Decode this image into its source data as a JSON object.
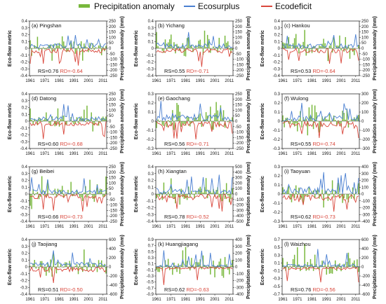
{
  "legend": {
    "precip_label": "Precipitation anomaly",
    "surplus_label": "Ecosurplus",
    "deficit_label": "Ecodeficit",
    "colors": {
      "precip": "#78b83c",
      "surplus": "#4a7fd1",
      "deficit": "#d9473c"
    }
  },
  "axis_labels": {
    "left": "Eco-flow metric",
    "right": "Precipitation anomaly (mm)"
  },
  "chart_data": [
    {
      "type": "bar",
      "title": "(a) Pingshan",
      "rs_text": "RS=0.76",
      "rd_text": "RD=-0.64",
      "ylim": [
        -0.4,
        0.4
      ],
      "yticks": [
        "0.4",
        "0.3",
        "0.2",
        "0.1",
        "0",
        "-0.1",
        "-0.2",
        "-0.3",
        "-0.4"
      ],
      "y2lim": [
        -250,
        250
      ],
      "y2ticks": [
        "250",
        "200",
        "150",
        "100",
        "50",
        "0",
        "-50",
        "-100",
        "-150",
        "-200",
        "-250"
      ],
      "xticks": [
        "1961",
        "1971",
        "1981",
        "1991",
        "2001",
        "2011"
      ],
      "seed": 11
    },
    {
      "type": "bar",
      "title": "(b) Yichang",
      "rs_text": "RS=0.55",
      "rd_text": "RD=-0.71",
      "ylim": [
        -0.4,
        0.4
      ],
      "yticks": [
        "0.4",
        "0.3",
        "0.2",
        "0.1",
        "0",
        "-0.1",
        "-0.2",
        "-0.3",
        "-0.4"
      ],
      "y2lim": [
        -250,
        250
      ],
      "y2ticks": [
        "250",
        "200",
        "150",
        "100",
        "50",
        "0",
        "-50",
        "-100",
        "-150",
        "-200",
        "-250"
      ],
      "xticks": [
        "1961",
        "1971",
        "1981",
        "1991",
        "2001",
        "2011"
      ],
      "seed": 23
    },
    {
      "type": "bar",
      "title": "(c) Hankou",
      "rs_text": "RS=0.53",
      "rd_text": "RD=-0.64",
      "ylim": [
        -0.4,
        0.4
      ],
      "yticks": [
        "0.4",
        "0.3",
        "0.2",
        "0.1",
        "0",
        "-0.1",
        "-0.2",
        "-0.3",
        "-0.4"
      ],
      "y2lim": [
        -250,
        250
      ],
      "y2ticks": [
        "250",
        "200",
        "150",
        "100",
        "50",
        "0",
        "-50",
        "-100",
        "-150",
        "-200",
        "-250"
      ],
      "xticks": [
        "1961",
        "1971",
        "1981",
        "1991",
        "2001",
        "2011"
      ],
      "seed": 37
    },
    {
      "type": "bar",
      "title": "(d) Datong",
      "rs_text": "RS=0.60",
      "rd_text": "RD=-0.68",
      "ylim": [
        -0.4,
        0.4
      ],
      "yticks": [
        "0.4",
        "0.3",
        "0.2",
        "0.1",
        "0",
        "-0.1",
        "-0.2",
        "-0.3",
        "-0.4"
      ],
      "y2lim": [
        -250,
        250
      ],
      "y2ticks": [
        "250",
        "200",
        "150",
        "100",
        "50",
        "0",
        "-50",
        "-100",
        "-150",
        "-200",
        "-250"
      ],
      "xticks": [
        "1961",
        "1971",
        "1981",
        "1991",
        "2001",
        "2011"
      ],
      "seed": 41
    },
    {
      "type": "bar",
      "title": "(e) Gaochang",
      "rs_text": "RS=0.56",
      "rd_text": "RD=-0.71",
      "ylim": [
        -0.3,
        0.3
      ],
      "yticks": [
        "0.3",
        "0.2",
        "0.1",
        "0",
        "-0.1",
        "-0.2",
        "-0.3"
      ],
      "y2lim": [
        -250,
        250
      ],
      "y2ticks": [
        "250",
        "200",
        "150",
        "100",
        "50",
        "0",
        "-50",
        "-100",
        "-150",
        "-200",
        "-250"
      ],
      "xticks": [
        "1961",
        "1971",
        "1981",
        "1991",
        "2001",
        "2011"
      ],
      "seed": 53
    },
    {
      "type": "bar",
      "title": "(f) Wulong",
      "rs_text": "RS=0.55",
      "rd_text": "RD=-0.74",
      "ylim": [
        -0.3,
        0.3
      ],
      "yticks": [
        "0.3",
        "0.2",
        "0.1",
        "0",
        "-0.1",
        "-0.2",
        "-0.3"
      ],
      "y2lim": [
        -300,
        300
      ],
      "y2ticks": [
        "300",
        "200",
        "100",
        "0",
        "-100",
        "-200",
        "-300"
      ],
      "xticks": [
        "1961",
        "1971",
        "1981",
        "1991",
        "2001",
        "2011"
      ],
      "seed": 67
    },
    {
      "type": "bar",
      "title": "(g) Beibei",
      "rs_text": "RS=0.66",
      "rd_text": "RD=-0.73",
      "ylim": [
        -0.4,
        0.4
      ],
      "yticks": [
        "0.4",
        "0.3",
        "0.2",
        "0.1",
        "0",
        "-0.1",
        "-0.2",
        "-0.3",
        "-0.4"
      ],
      "y2lim": [
        -250,
        250
      ],
      "y2ticks": [
        "250",
        "200",
        "150",
        "100",
        "50",
        "0",
        "-50",
        "-100",
        "-150",
        "-200",
        "-250"
      ],
      "xticks": [
        "1961",
        "1971",
        "1981",
        "1991",
        "2001",
        "2011"
      ],
      "seed": 71
    },
    {
      "type": "bar",
      "title": "(h) Xiangtan",
      "rs_text": "RS=0.78",
      "rd_text": "RD=-0.52",
      "ylim": [
        -0.4,
        0.4
      ],
      "yticks": [
        "0.4",
        "0.3",
        "0.2",
        "0.1",
        "0",
        "-0.1",
        "-0.2",
        "-0.3",
        "-0.4"
      ],
      "y2lim": [
        -500,
        500
      ],
      "y2ticks": [
        "500",
        "400",
        "300",
        "200",
        "100",
        "0",
        "-100",
        "-200",
        "-300",
        "-400",
        "-500"
      ],
      "xticks": [
        "1961",
        "1971",
        "1981",
        "1991",
        "2001",
        "2011"
      ],
      "seed": 83
    },
    {
      "type": "bar",
      "title": "(i) Taoyuan",
      "rs_text": "RS=0.62",
      "rd_text": "RD=-0.73",
      "ylim": [
        -0.3,
        0.3
      ],
      "yticks": [
        "0.3",
        "0.2",
        "0.1",
        "0",
        "-0.1",
        "-0.2",
        "-0.3"
      ],
      "y2lim": [
        -400,
        400
      ],
      "y2ticks": [
        "400",
        "300",
        "200",
        "100",
        "0",
        "-100",
        "-200",
        "-300",
        "-400"
      ],
      "xticks": [
        "1961",
        "1971",
        "1981",
        "1991",
        "2001",
        "2011"
      ],
      "seed": 97
    },
    {
      "type": "bar",
      "title": "(j) Taojiang",
      "rs_text": "RS=0.51",
      "rd_text": "RD=-0.50",
      "ylim": [
        -0.4,
        0.4
      ],
      "yticks": [
        "0.4",
        "0.3",
        "0.2",
        "0.1",
        "0",
        "-0.1",
        "-0.2",
        "-0.3",
        "-0.4"
      ],
      "y2lim": [
        -600,
        600
      ],
      "y2ticks": [
        "600",
        "400",
        "200",
        "0",
        "-200",
        "-400",
        "-600"
      ],
      "xticks": [
        "1961",
        "1971",
        "1981",
        "1991",
        "2001",
        "2011"
      ],
      "seed": 101
    },
    {
      "type": "bar",
      "title": "(k) Huangjiagang",
      "rs_text": "RS=0.62",
      "rd_text": "RD=-0.63",
      "ylim": [
        -0.9,
        0.9
      ],
      "yticks": [
        "0.9",
        "0.7",
        "0.5",
        "0.3",
        "0.1",
        "-0.1",
        "-0.3",
        "-0.5",
        "-0.7",
        "-0.9"
      ],
      "y2lim": [
        -400,
        400
      ],
      "y2ticks": [
        "400",
        "300",
        "200",
        "100",
        "0",
        "-100",
        "-200",
        "-300",
        "-400"
      ],
      "xticks": [
        "1961",
        "1971",
        "1981",
        "1991",
        "2001",
        "2011"
      ],
      "seed": 113
    },
    {
      "type": "bar",
      "title": "(l) Waizhou",
      "rs_text": "RS=0.76",
      "rd_text": "RD=-0.56",
      "ylim": [
        -0.7,
        0.7
      ],
      "yticks": [
        "0.7",
        "0.5",
        "0.3",
        "0.1",
        "-0.1",
        "-0.3",
        "-0.5",
        "-0.7"
      ],
      "y2lim": [
        -600,
        600
      ],
      "y2ticks": [
        "600",
        "400",
        "200",
        "0",
        "-200",
        "-400",
        "-600"
      ],
      "xticks": [
        "1961",
        "1971",
        "1981",
        "1991",
        "2001",
        "2011"
      ],
      "seed": 127
    }
  ]
}
